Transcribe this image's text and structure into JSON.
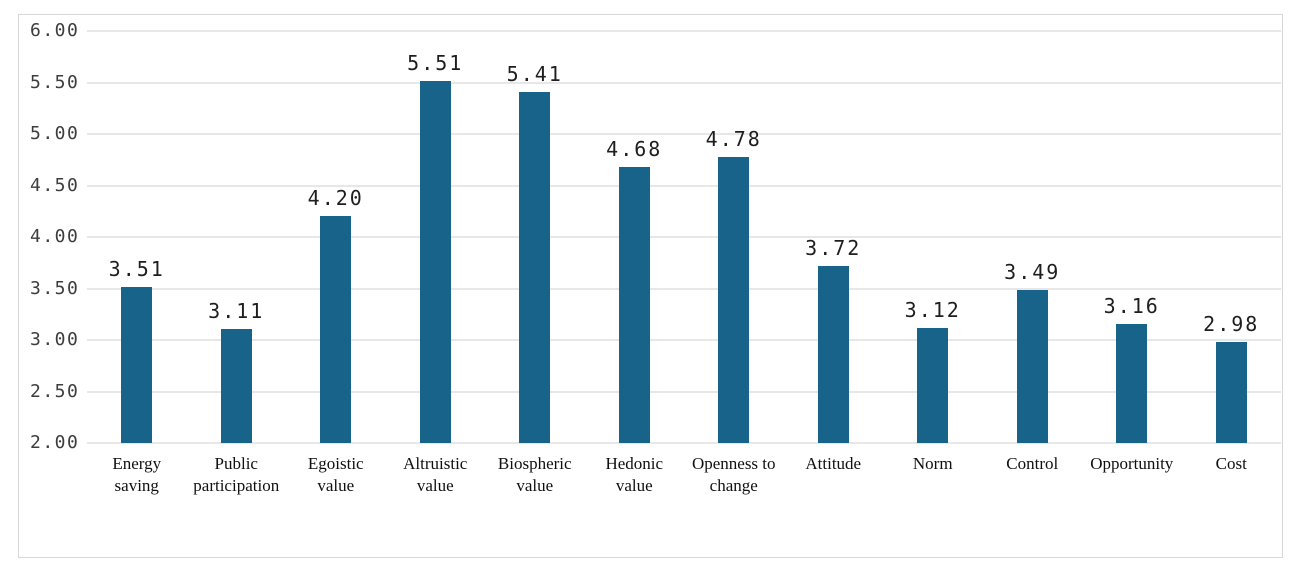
{
  "chart": {
    "background": "#ffffff",
    "frame_border_color": "#d8d8d8"
  },
  "chart_data": {
    "type": "bar",
    "title": "",
    "xlabel": "",
    "ylabel": "",
    "categories": [
      "Energy saving",
      "Public participation",
      "Egoistic value",
      "Altruistic value",
      "Biospheric value",
      "Hedonic value",
      "Openness to change",
      "Attitude",
      "Norm",
      "Control",
      "Opportunity",
      "Cost"
    ],
    "values": [
      3.51,
      3.11,
      4.2,
      5.51,
      5.41,
      4.68,
      4.78,
      3.72,
      3.12,
      3.49,
      3.16,
      2.98
    ],
    "data_labels": [
      "3.51",
      "3.11",
      "4.20",
      "5.51",
      "5.41",
      "4.68",
      "4.78",
      "3.72",
      "3.12",
      "3.49",
      "3.16",
      "2.98"
    ],
    "ylim": [
      2.0,
      6.0
    ],
    "ytick_step": 0.5,
    "yticks": [
      "6.00",
      "5.50",
      "5.00",
      "4.50",
      "4.00",
      "3.50",
      "3.00",
      "2.50",
      "2.00"
    ],
    "grid": true,
    "legend": "none",
    "bar_color": "#186389",
    "gridline_color": "#e7e7e7"
  }
}
